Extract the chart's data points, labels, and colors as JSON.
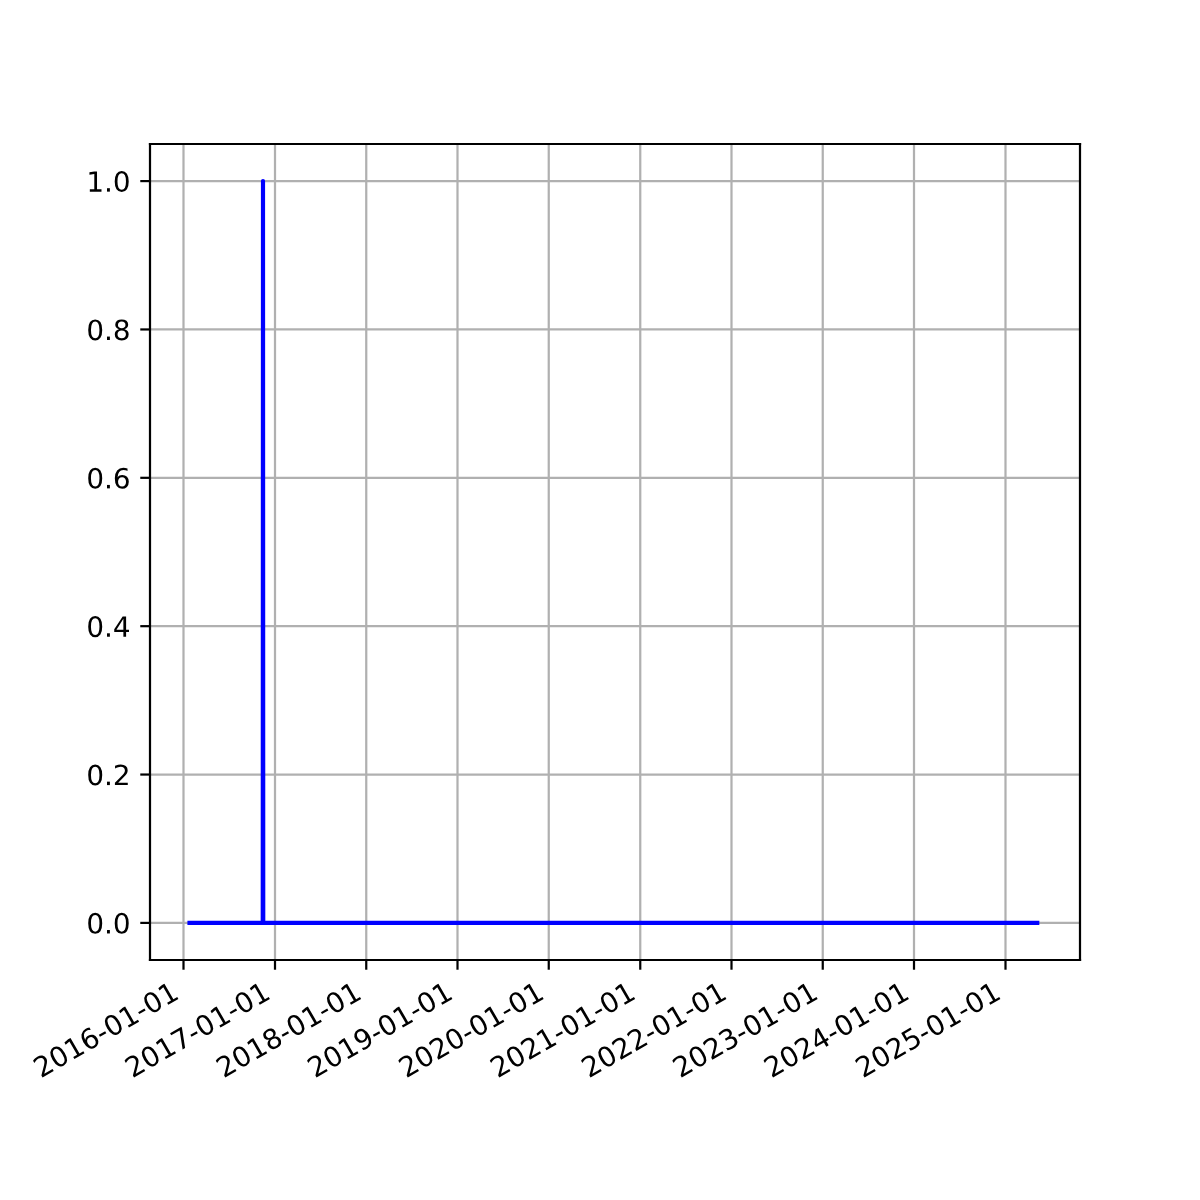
{
  "chart_data": {
    "type": "line",
    "x": [
      "2016-01-25",
      "2016-11-13",
      "2016-11-14",
      "2016-11-15",
      "2025-05-08"
    ],
    "series": [
      {
        "color": "#0000ff",
        "values": [
          0,
          0,
          1,
          0,
          0
        ]
      }
    ],
    "xlim": [
      "2015-08-20",
      "2025-10-26"
    ],
    "xticks": [
      "2016-01-01",
      "2017-01-01",
      "2018-01-01",
      "2019-01-01",
      "2020-01-01",
      "2021-01-01",
      "2022-01-01",
      "2023-01-01",
      "2024-01-01",
      "2025-01-01"
    ],
    "ylim": [
      -0.05,
      1.05
    ],
    "yticks": [
      {
        "value": 0,
        "label": "0.0"
      },
      0.2,
      0.4,
      0.6,
      0.8,
      {
        "value": 1,
        "label": "1.0"
      }
    ],
    "grid": true
  }
}
